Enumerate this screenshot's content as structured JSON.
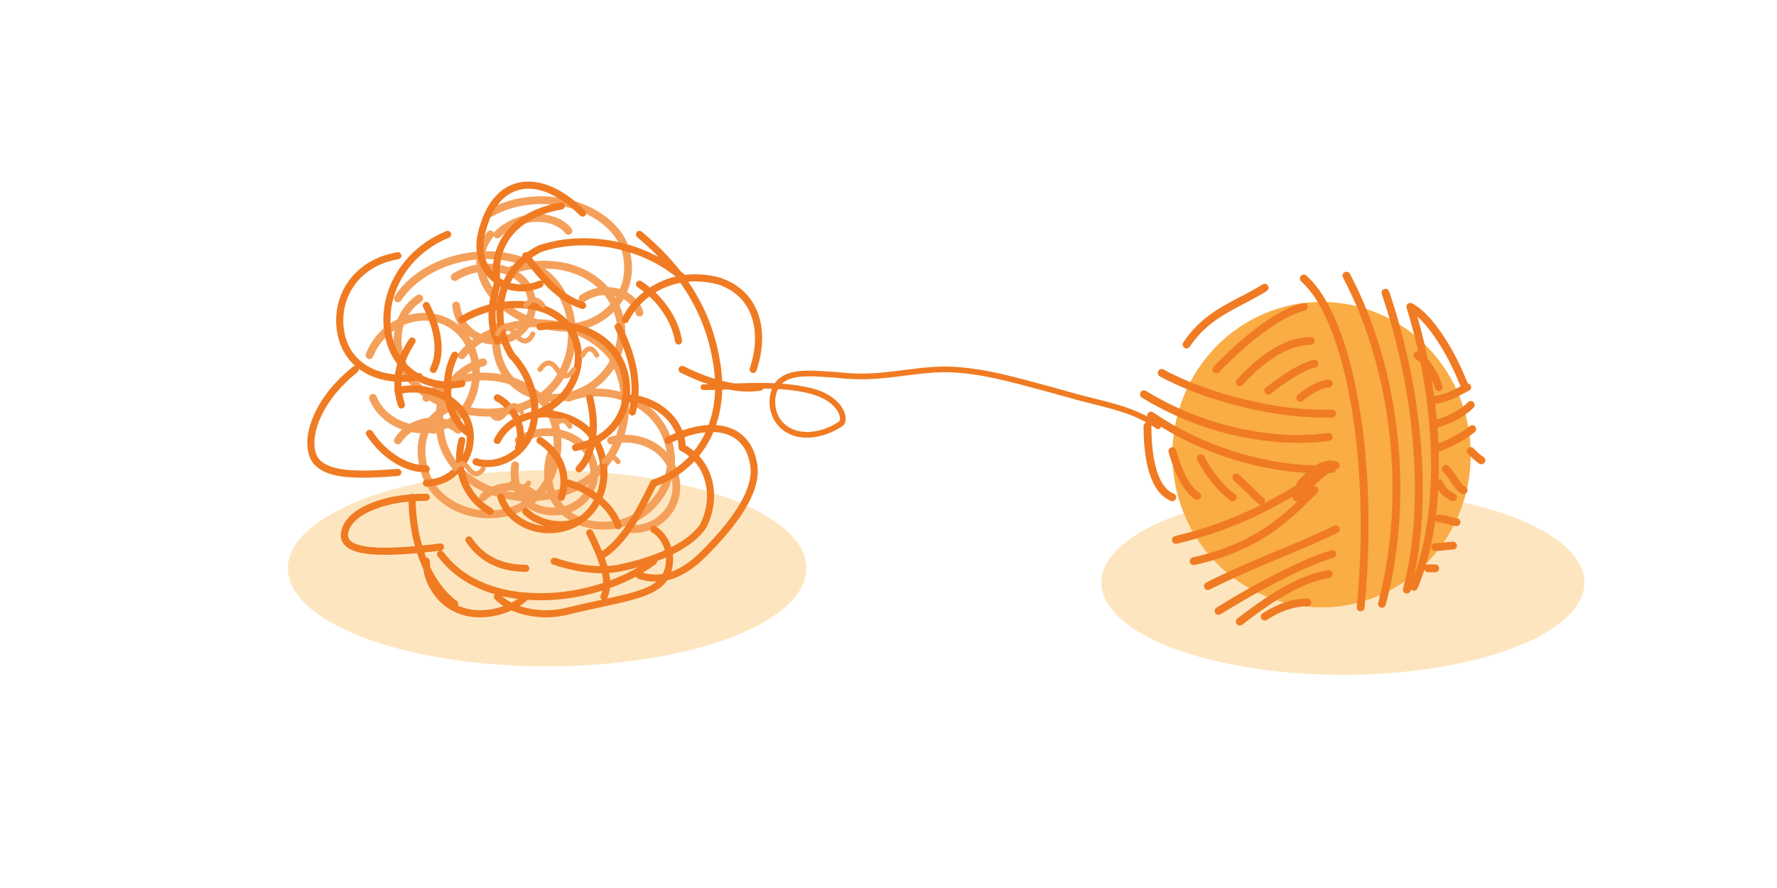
{
  "scene": {
    "subject": "tangled-yarn-to-neat-ball",
    "colors": {
      "background": "#ffffff",
      "shadow": "#fde6bf",
      "thread_dark": "#f07b22",
      "thread_light": "#f5a05a",
      "ball_fill": "#f9ad44"
    },
    "icons": [
      "tangled-yarn-icon",
      "yarn-ball-icon",
      "connecting-thread-icon"
    ]
  }
}
